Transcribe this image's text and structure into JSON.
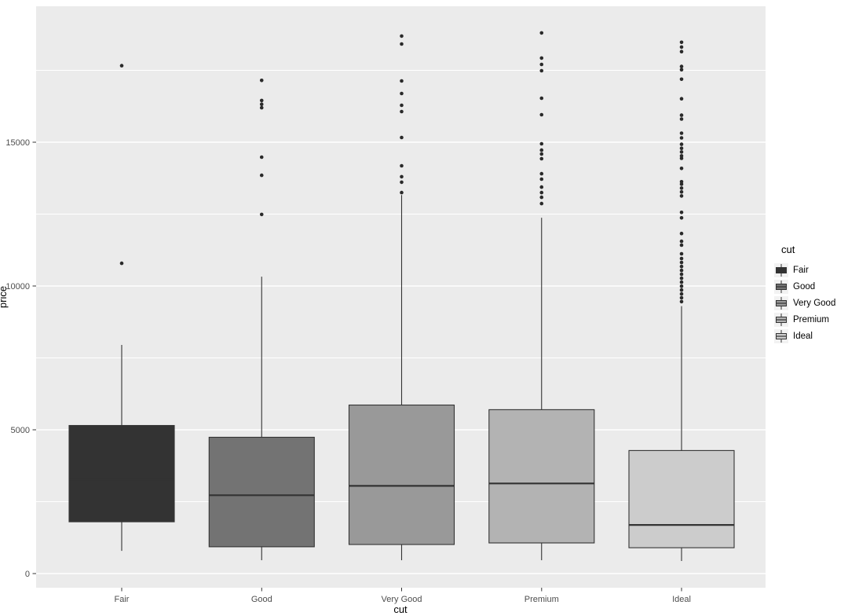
{
  "chart_data": {
    "type": "boxplot",
    "title": "",
    "xlabel": "cut",
    "ylabel": "price",
    "categories": [
      "Fair",
      "Good",
      "Very Good",
      "Premium",
      "Ideal"
    ],
    "y_ticks": [
      0,
      5000,
      10000,
      15000
    ],
    "y_minor_ticks": [
      2500,
      7500,
      12500,
      17500
    ],
    "ylim": [
      -490,
      19725
    ],
    "grid": "white major and minor horizontal gridlines on grey panel",
    "legend_position": "right",
    "series": [
      {
        "name": "Fair",
        "fill": "#333333",
        "q1": 1800,
        "median": 3280,
        "q3": 5150,
        "whisker_low": 790,
        "whisker_high": 7950,
        "outliers": [
          10790,
          17660
        ]
      },
      {
        "name": "Good",
        "fill": "#737373",
        "q1": 930,
        "median": 2725,
        "q3": 4740,
        "whisker_low": 465,
        "whisker_high": 10325,
        "outliers": [
          12490,
          13850,
          14480,
          16200,
          16320,
          16450,
          17150
        ]
      },
      {
        "name": "Very Good",
        "fill": "#999999",
        "q1": 1010,
        "median": 3050,
        "q3": 5860,
        "whisker_low": 465,
        "whisker_high": 13160,
        "outliers": [
          13250,
          13610,
          13800,
          14180,
          15165,
          16065,
          16285,
          16695,
          17130,
          18415,
          18690
        ]
      },
      {
        "name": "Premium",
        "fill": "#b3b3b3",
        "q1": 1065,
        "median": 3135,
        "q3": 5700,
        "whisker_low": 465,
        "whisker_high": 12375,
        "outliers": [
          12865,
          13085,
          13250,
          13440,
          13715,
          13905,
          14425,
          14590,
          14725,
          14945,
          15955,
          16530,
          17485,
          17705,
          17925,
          18800
        ]
      },
      {
        "name": "Ideal",
        "fill": "#cccccc",
        "q1": 900,
        "median": 1690,
        "q3": 4280,
        "whisker_low": 437,
        "whisker_high": 9300,
        "outliers": [
          9455,
          9590,
          9725,
          9860,
          9995,
          10135,
          10270,
          10410,
          10545,
          10680,
          10820,
          10955,
          11120,
          11420,
          11555,
          11825,
          12370,
          12560,
          13130,
          13270,
          13405,
          13540,
          13625,
          14090,
          14440,
          14525,
          14660,
          14790,
          14930,
          15150,
          15315,
          15805,
          15940,
          16510,
          17190,
          17520,
          17635,
          18150,
          18310,
          18475
        ]
      }
    ],
    "colors": {
      "panel_bg": "#ebebeb",
      "grid": "#ffffff",
      "box_line": "#333333",
      "outlier": "#2a2a2a",
      "tick_text": "#4d4d4d",
      "axis_title": "#000000",
      "legend_key_bg": "#f2f2f2"
    }
  },
  "legend": {
    "title": "cut",
    "items": [
      {
        "label": "Fair",
        "fill": "#333333"
      },
      {
        "label": "Good",
        "fill": "#737373"
      },
      {
        "label": "Very Good",
        "fill": "#999999"
      },
      {
        "label": "Premium",
        "fill": "#b3b3b3"
      },
      {
        "label": "Ideal",
        "fill": "#cccccc"
      }
    ]
  },
  "axes": {
    "x_title": "cut",
    "y_title": "price"
  }
}
